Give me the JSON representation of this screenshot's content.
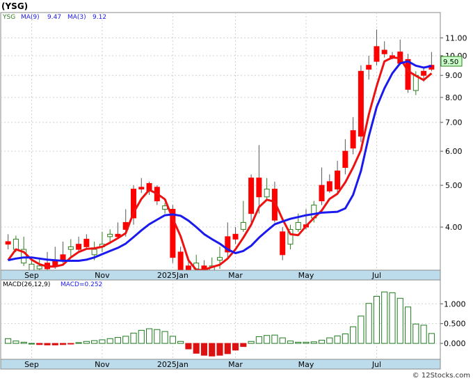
{
  "title": "(YSG)",
  "footer": "© 12Stocks.com",
  "colors": {
    "up": "#2e7d1e",
    "down": "#ff0000",
    "ma_short": "#ee1111",
    "ma_long": "#1a1aee",
    "axis_band": "#bcdcec",
    "grid": "#d0d0d0",
    "price_tag_bg": "#c8ffc8",
    "macd_bar": "#1f7a1f",
    "macd_bar_neg": "#dd1111"
  },
  "legend": {
    "symbol": "YSG",
    "ma9_label": "MA(9)",
    "ma9_value": "9.47",
    "ma3_label": "MA(3)",
    "ma3_value": "9.12",
    "macd_label": "MACD(26,12,9)",
    "macd_value": "MACD=0.252"
  },
  "last_price_tag": "9.50",
  "chart_data": [
    {
      "type": "candlestick",
      "scale": "log",
      "ylim": [
        3.2,
        12.5
      ],
      "yticks": [
        {
          "value": 11,
          "label": "11.00"
        },
        {
          "value": 10,
          "label": "10.00"
        },
        {
          "value": 9,
          "label": "9.00"
        },
        {
          "value": 8,
          "label": "8.00"
        },
        {
          "value": 7,
          "label": "7.00"
        },
        {
          "value": 6,
          "label": "6.00"
        },
        {
          "value": 5,
          "label": "5.00"
        },
        {
          "value": 4,
          "label": "4.00"
        }
      ],
      "x_labels": [
        "Sep",
        "Nov",
        "2025Jan",
        "Mar",
        "May",
        "Jul"
      ],
      "x_label_index": [
        3,
        12,
        21,
        29,
        38,
        47
      ],
      "candles": [
        [
          3.7,
          3.65,
          3.85,
          3.55
        ],
        [
          3.55,
          3.75,
          3.82,
          3.5
        ],
        [
          3.3,
          3.55,
          3.8,
          3.25
        ],
        [
          3.15,
          3.28,
          3.4,
          3.1
        ],
        [
          3.2,
          3.25,
          3.4,
          3.05
        ],
        [
          3.3,
          3.2,
          3.5,
          3.18
        ],
        [
          3.35,
          3.25,
          3.6,
          3.2
        ],
        [
          3.45,
          3.35,
          3.7,
          3.3
        ],
        [
          3.55,
          3.6,
          3.75,
          3.4
        ],
        [
          3.65,
          3.55,
          3.8,
          3.5
        ],
        [
          3.75,
          3.6,
          3.85,
          3.55
        ],
        [
          3.45,
          3.55,
          3.7,
          3.35
        ],
        [
          3.6,
          3.65,
          3.9,
          3.5
        ],
        [
          3.8,
          3.85,
          3.95,
          3.7
        ],
        [
          3.85,
          3.8,
          4.1,
          3.75
        ],
        [
          4.1,
          3.95,
          4.4,
          3.8
        ],
        [
          4.9,
          4.2,
          5.0,
          4.05
        ],
        [
          4.95,
          4.9,
          5.2,
          4.8
        ],
        [
          5.05,
          4.85,
          5.1,
          4.75
        ],
        [
          4.95,
          4.6,
          5.0,
          4.5
        ],
        [
          4.4,
          4.48,
          4.55,
          4.3
        ],
        [
          4.4,
          3.4,
          4.5,
          3.3
        ],
        [
          3.5,
          3.1,
          3.6,
          3.0
        ],
        [
          3.25,
          3.1,
          3.4,
          3.0
        ],
        [
          3.2,
          3.3,
          3.45,
          3.1
        ],
        [
          3.25,
          3.15,
          3.35,
          3.1
        ],
        [
          3.15,
          3.25,
          3.4,
          3.1
        ],
        [
          3.35,
          3.4,
          3.6,
          3.2
        ],
        [
          3.8,
          3.5,
          4.1,
          3.4
        ],
        [
          3.85,
          3.75,
          4.0,
          3.65
        ],
        [
          3.95,
          4.1,
          4.6,
          3.9
        ],
        [
          5.2,
          4.3,
          5.3,
          4.1
        ],
        [
          5.2,
          4.7,
          6.2,
          4.3
        ],
        [
          4.7,
          4.9,
          5.2,
          4.6
        ],
        [
          4.9,
          4.15,
          5.1,
          4.1
        ],
        [
          3.9,
          3.45,
          4.0,
          3.35
        ],
        [
          3.65,
          3.95,
          4.05,
          3.55
        ],
        [
          3.95,
          4.1,
          4.3,
          3.9
        ],
        [
          4.05,
          4.0,
          4.4,
          3.95
        ],
        [
          4.2,
          4.5,
          4.6,
          4.1
        ],
        [
          5.0,
          4.6,
          5.5,
          4.5
        ],
        [
          5.1,
          4.85,
          5.3,
          4.8
        ],
        [
          5.4,
          4.9,
          5.7,
          4.8
        ],
        [
          6.0,
          5.5,
          6.4,
          5.3
        ],
        [
          6.7,
          6.1,
          7.2,
          5.9
        ],
        [
          9.2,
          6.5,
          9.5,
          6.3
        ],
        [
          9.5,
          9.3,
          10.0,
          8.8
        ],
        [
          10.5,
          9.7,
          11.5,
          9.5
        ],
        [
          10.3,
          10.1,
          10.8,
          9.9
        ],
        [
          10.0,
          9.9,
          10.2,
          9.8
        ],
        [
          10.2,
          9.6,
          10.9,
          9.5
        ],
        [
          9.8,
          8.35,
          10.1,
          8.2
        ],
        [
          8.3,
          9.0,
          9.2,
          8.1
        ],
        [
          9.2,
          9.0,
          9.4,
          8.7
        ],
        [
          9.5,
          9.3,
          10.2,
          9.2
        ]
      ],
      "series": [
        {
          "name": "MA(3)",
          "values": [
            3.35,
            3.55,
            3.5,
            3.36,
            3.28,
            3.24,
            3.24,
            3.27,
            3.4,
            3.5,
            3.56,
            3.57,
            3.6,
            3.68,
            3.77,
            3.87,
            4.32,
            4.65,
            4.88,
            4.78,
            4.64,
            4.18,
            3.81,
            3.35,
            3.18,
            3.18,
            3.23,
            3.27,
            3.38,
            3.55,
            3.78,
            4.05,
            4.45,
            4.63,
            4.58,
            4.17,
            3.85,
            3.83,
            4.02,
            4.2,
            4.37,
            4.65,
            4.78,
            5.08,
            5.5,
            6.03,
            7.3,
            8.5,
            9.7,
            9.9,
            9.87,
            9.22,
            8.98,
            8.78,
            9.1
          ]
        },
        {
          "name": "MA(9)",
          "values": [
            3.35,
            3.38,
            3.4,
            3.4,
            3.38,
            3.36,
            3.35,
            3.34,
            3.34,
            3.34,
            3.36,
            3.4,
            3.46,
            3.52,
            3.58,
            3.66,
            3.79,
            3.93,
            4.06,
            4.16,
            4.26,
            4.28,
            4.25,
            4.14,
            4.0,
            3.85,
            3.75,
            3.66,
            3.55,
            3.48,
            3.52,
            3.62,
            3.78,
            3.92,
            4.06,
            4.12,
            4.18,
            4.22,
            4.26,
            4.29,
            4.32,
            4.33,
            4.34,
            4.42,
            4.75,
            5.4,
            6.5,
            7.6,
            8.4,
            9.1,
            9.6,
            9.7,
            9.48,
            9.38,
            9.47
          ]
        }
      ]
    },
    {
      "type": "bar",
      "title": "MACD(26,12,9)",
      "ylim": [
        -0.35,
        1.55
      ],
      "yticks": [
        {
          "value": 1.0,
          "label": "1.000"
        },
        {
          "value": 0.5,
          "label": "0.500"
        },
        {
          "value": 0.0,
          "label": "0.000"
        }
      ],
      "x_labels": [
        "Sep",
        "Nov",
        "2025Jan",
        "Mar",
        "May",
        "Jul"
      ],
      "values": [
        0.12,
        0.06,
        0.03,
        0.0,
        -0.03,
        -0.04,
        -0.04,
        -0.03,
        -0.01,
        0.02,
        0.05,
        0.07,
        0.09,
        0.12,
        0.15,
        0.18,
        0.26,
        0.33,
        0.37,
        0.35,
        0.3,
        0.18,
        0.05,
        -0.14,
        -0.25,
        -0.3,
        -0.32,
        -0.3,
        -0.26,
        -0.17,
        -0.08,
        0.05,
        0.17,
        0.2,
        0.21,
        0.14,
        0.06,
        0.03,
        0.03,
        0.04,
        0.08,
        0.14,
        0.19,
        0.24,
        0.42,
        0.69,
        1.01,
        1.19,
        1.3,
        1.28,
        1.14,
        0.92,
        0.49,
        0.46,
        0.25
      ]
    }
  ]
}
